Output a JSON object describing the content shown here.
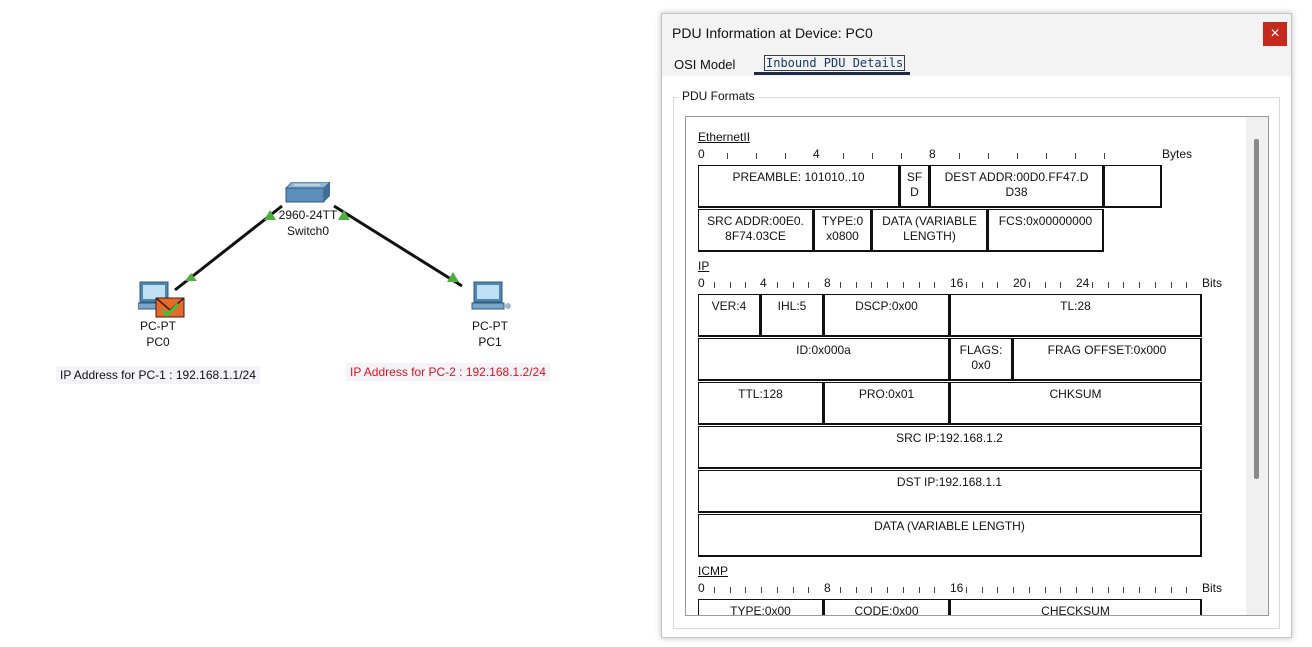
{
  "topology": {
    "switch": {
      "model": "2960-24TT",
      "name": "Switch0"
    },
    "pc0": {
      "type": "PC-PT",
      "name": "PC0"
    },
    "pc1": {
      "type": "PC-PT",
      "name": "PC1"
    },
    "pc0_ip_label": "IP Address for PC-1 : 192.168.1.1/24",
    "pc1_ip_label": "IP Address for PC-2 : 192.168.1.2/24",
    "link_status_color": "#4caf3c",
    "pc1_label_color": "#e0141e"
  },
  "dialog": {
    "title": "PDU Information at Device: PC0",
    "close_label": "×",
    "tabs": [
      {
        "label": "OSI Model"
      },
      {
        "label": "Inbound PDU Details",
        "selected": true
      }
    ],
    "group_label": "PDU Formats"
  },
  "pdu": {
    "ethernet": {
      "title": "EthernetII",
      "ruler": {
        "numbers": [
          "0",
          "4",
          "8"
        ],
        "unit": "Bytes"
      },
      "row1": [
        "PREAMBLE: 101010..10",
        "SF\nD",
        "DEST ADDR:00D0.FF47.D\nD38"
      ],
      "row2": [
        "SRC ADDR:00E0.\n8F74.03CE",
        "TYPE:0\nx0800",
        "DATA (VARIABLE\nLENGTH)",
        "FCS:0x00000000"
      ]
    },
    "ip": {
      "title": "IP",
      "ruler": {
        "numbers": [
          "0",
          "4",
          "8",
          "16",
          "20",
          "24"
        ],
        "unit": "Bits"
      },
      "row1": [
        "VER:4",
        "IHL:5",
        "DSCP:0x00",
        "TL:28"
      ],
      "row2": [
        "ID:0x000a",
        "FLAGS:\n0x0",
        "FRAG OFFSET:0x000"
      ],
      "row3": [
        "TTL:128",
        "PRO:0x01",
        "CHKSUM"
      ],
      "row4": "SRC IP:192.168.1.2",
      "row5": "DST IP:192.168.1.1",
      "row6": "DATA (VARIABLE LENGTH)"
    },
    "icmp": {
      "title": "ICMP",
      "ruler": {
        "numbers": [
          "0",
          "8",
          "16"
        ],
        "unit": "Bits"
      },
      "row1": [
        "TYPE:0x00",
        "CODE:0x00",
        "CHECKSUM"
      ]
    }
  }
}
